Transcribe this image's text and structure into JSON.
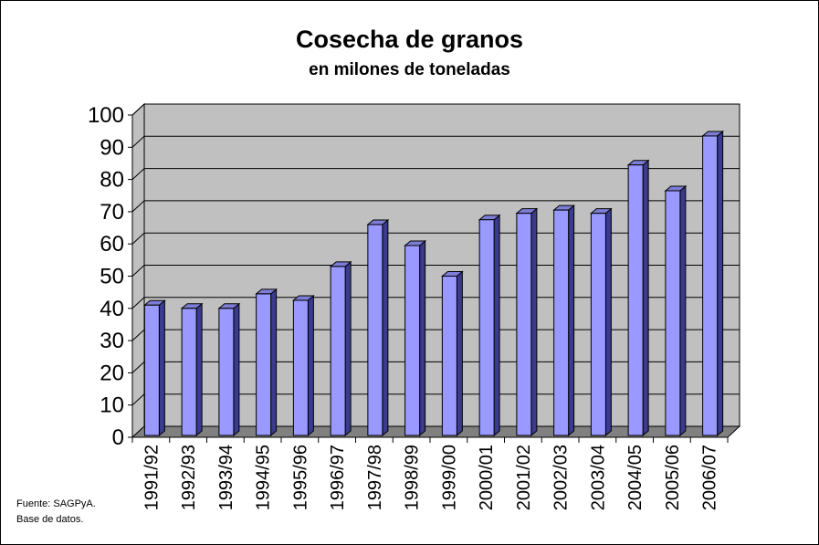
{
  "chart_data": {
    "type": "bar",
    "title": "Cosecha de granos",
    "subtitle": "en milones de toneladas",
    "categories": [
      "1991/92",
      "1992/93",
      "1993/94",
      "1994/95",
      "1995/96",
      "1996/97",
      "1997/98",
      "1998/99",
      "1999/00",
      "2000/01",
      "2001/02",
      "2002/03",
      "2003/04",
      "2004/05",
      "2005/06",
      "2006/07"
    ],
    "values": [
      41,
      40,
      40,
      44.5,
      42.5,
      53,
      66,
      59.5,
      50,
      67.5,
      69.5,
      70.5,
      69.5,
      84.5,
      76.5,
      93.5
    ],
    "ylim": [
      0,
      100
    ],
    "yticks": [
      0,
      10,
      20,
      30,
      40,
      50,
      60,
      70,
      80,
      90,
      100
    ],
    "grid": true,
    "legend": "none",
    "colors": {
      "bar_front": "#9999ff",
      "bar_side": "#3a3a8e",
      "bar_top": "#7d7dd6",
      "plot_wall": "#c0c0c0",
      "floor": "#808080"
    }
  },
  "source": {
    "line1": "Fuente: SAGPyA.",
    "line2": "Base de datos."
  }
}
